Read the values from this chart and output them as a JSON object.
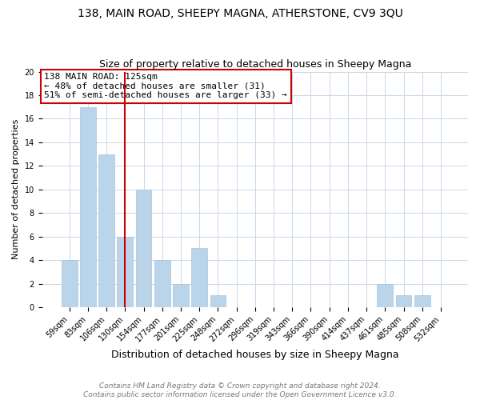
{
  "title1": "138, MAIN ROAD, SHEEPY MAGNA, ATHERSTONE, CV9 3QU",
  "title2": "Size of property relative to detached houses in Sheepy Magna",
  "xlabel": "Distribution of detached houses by size in Sheepy Magna",
  "ylabel": "Number of detached properties",
  "footer1": "Contains HM Land Registry data © Crown copyright and database right 2024.",
  "footer2": "Contains public sector information licensed under the Open Government Licence v3.0.",
  "annotation_line1": "138 MAIN ROAD: 125sqm",
  "annotation_line2": "← 48% of detached houses are smaller (31)",
  "annotation_line3": "51% of semi-detached houses are larger (33) →",
  "bar_labels": [
    "59sqm",
    "83sqm",
    "106sqm",
    "130sqm",
    "154sqm",
    "177sqm",
    "201sqm",
    "225sqm",
    "248sqm",
    "272sqm",
    "296sqm",
    "319sqm",
    "343sqm",
    "366sqm",
    "390sqm",
    "414sqm",
    "437sqm",
    "461sqm",
    "485sqm",
    "508sqm",
    "532sqm"
  ],
  "bar_values": [
    4,
    17,
    13,
    6,
    10,
    4,
    2,
    5,
    1,
    0,
    0,
    0,
    0,
    0,
    0,
    0,
    0,
    2,
    1,
    1,
    0
  ],
  "bar_color": "#bad4ea",
  "bar_edge_color": "#aac4da",
  "vline_color": "#cc0000",
  "ylim": [
    0,
    20
  ],
  "yticks": [
    0,
    2,
    4,
    6,
    8,
    10,
    12,
    14,
    16,
    18,
    20
  ],
  "annotation_box_color": "#ffffff",
  "annotation_box_edge": "#cc0000",
  "bg_color": "#ffffff",
  "grid_color": "#c8d8e8",
  "title1_fontsize": 10,
  "title2_fontsize": 9,
  "xlabel_fontsize": 9,
  "ylabel_fontsize": 8,
  "tick_fontsize": 7,
  "footer_fontsize": 6.5,
  "annotation_fontsize": 8
}
